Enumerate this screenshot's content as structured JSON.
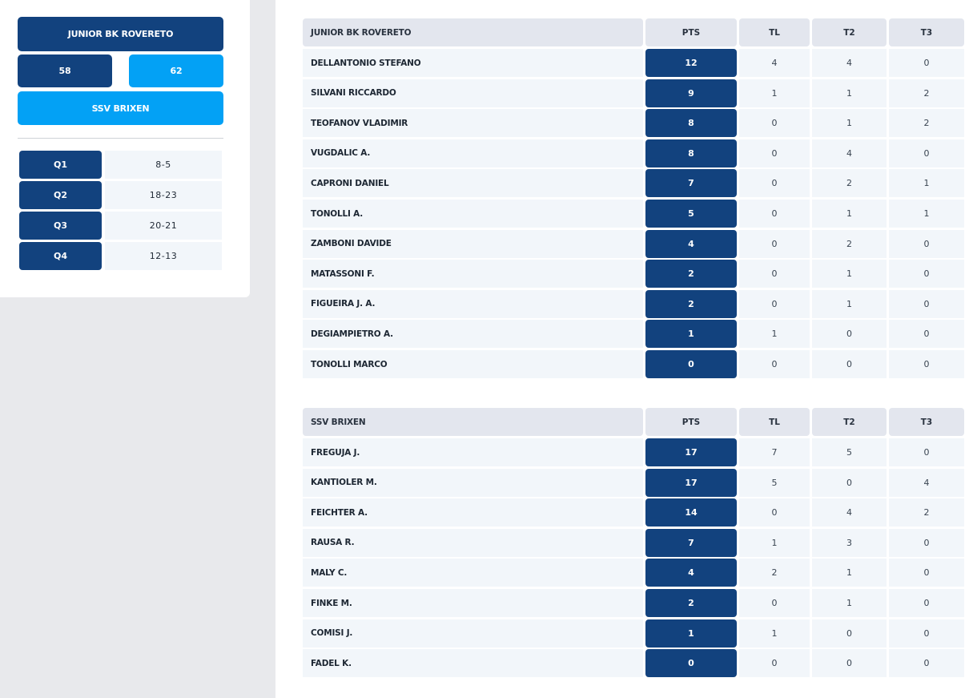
{
  "summary": {
    "home_team": "JUNIOR BK ROVERETO",
    "home_score": "58",
    "away_score": "62",
    "away_team": "SSV BRIXEN",
    "quarters": [
      {
        "label": "Q1",
        "score": "8-5"
      },
      {
        "label": "Q2",
        "score": "18-23"
      },
      {
        "label": "Q3",
        "score": "20-21"
      },
      {
        "label": "Q4",
        "score": "12-13"
      }
    ]
  },
  "colors": {
    "dark": "#12427e",
    "light": "#03a1f5"
  },
  "tables": [
    {
      "team": "JUNIOR BK ROVERETO",
      "headers": {
        "pts": "PTS",
        "tl": "TL",
        "t2": "T2",
        "t3": "T3"
      },
      "rows": [
        {
          "name": "DELLANTONIO STEFANO",
          "pts": "12",
          "tl": "4",
          "t2": "4",
          "t3": "0"
        },
        {
          "name": "SILVANI RICCARDO",
          "pts": "9",
          "tl": "1",
          "t2": "1",
          "t3": "2"
        },
        {
          "name": "TEOFANOV VLADIMIR",
          "pts": "8",
          "tl": "0",
          "t2": "1",
          "t3": "2"
        },
        {
          "name": "VUGDALIC A.",
          "pts": "8",
          "tl": "0",
          "t2": "4",
          "t3": "0"
        },
        {
          "name": "CAPRONI DANIEL",
          "pts": "7",
          "tl": "0",
          "t2": "2",
          "t3": "1"
        },
        {
          "name": "TONOLLI A.",
          "pts": "5",
          "tl": "0",
          "t2": "1",
          "t3": "1"
        },
        {
          "name": "ZAMBONI DAVIDE",
          "pts": "4",
          "tl": "0",
          "t2": "2",
          "t3": "0"
        },
        {
          "name": "MATASSONI F.",
          "pts": "2",
          "tl": "0",
          "t2": "1",
          "t3": "0"
        },
        {
          "name": "FIGUEIRA J. A.",
          "pts": "2",
          "tl": "0",
          "t2": "1",
          "t3": "0"
        },
        {
          "name": "DEGIAMPIETRO A.",
          "pts": "1",
          "tl": "1",
          "t2": "0",
          "t3": "0"
        },
        {
          "name": "TONOLLI MARCO",
          "pts": "0",
          "tl": "0",
          "t2": "0",
          "t3": "0"
        }
      ]
    },
    {
      "team": "SSV BRIXEN",
      "headers": {
        "pts": "PTS",
        "tl": "TL",
        "t2": "T2",
        "t3": "T3"
      },
      "rows": [
        {
          "name": "FREGUJA J.",
          "pts": "17",
          "tl": "7",
          "t2": "5",
          "t3": "0"
        },
        {
          "name": "KANTIOLER M.",
          "pts": "17",
          "tl": "5",
          "t2": "0",
          "t3": "4"
        },
        {
          "name": "FEICHTER A.",
          "pts": "14",
          "tl": "0",
          "t2": "4",
          "t3": "2"
        },
        {
          "name": "RAUSA R.",
          "pts": "7",
          "tl": "1",
          "t2": "3",
          "t3": "0"
        },
        {
          "name": "MALY C.",
          "pts": "4",
          "tl": "2",
          "t2": "1",
          "t3": "0"
        },
        {
          "name": "FINKE M.",
          "pts": "2",
          "tl": "0",
          "t2": "1",
          "t3": "0"
        },
        {
          "name": "COMISI J.",
          "pts": "1",
          "tl": "1",
          "t2": "0",
          "t3": "0"
        },
        {
          "name": "FADEL K.",
          "pts": "0",
          "tl": "0",
          "t2": "0",
          "t3": "0"
        }
      ]
    }
  ]
}
